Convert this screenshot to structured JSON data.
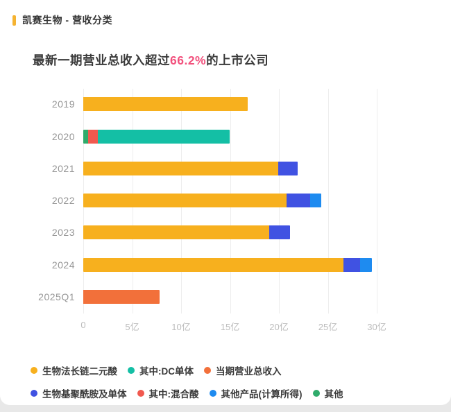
{
  "header": {
    "title": "凯赛生物 - 营收分类",
    "accent_color": "#f5b331"
  },
  "subtitle": {
    "prefix": "最新一期营业总收入超过",
    "highlight": "66.2%",
    "suffix": "的上市公司",
    "highlight_color": "#f2517d"
  },
  "chart_data": {
    "type": "bar",
    "orientation": "horizontal",
    "stacked": true,
    "unit": "亿",
    "grid": true,
    "categories": [
      "2019",
      "2020",
      "2021",
      "2022",
      "2023",
      "2024",
      "2025Q1"
    ],
    "x_ticks": [
      "0",
      "5亿",
      "10亿",
      "15亿",
      "20亿",
      "25亿",
      "30亿"
    ],
    "xlim": [
      0,
      30
    ],
    "bars": [
      {
        "year": "2019",
        "segments": [
          {
            "series": "生物法长链二元酸",
            "value": 16.8,
            "color": "#f7b01e"
          }
        ]
      },
      {
        "year": "2020",
        "segments": [
          {
            "series": "其他",
            "value": 0.5,
            "color": "#2fab6b"
          },
          {
            "series": "其中:混合酸",
            "value": 1.0,
            "color": "#f1594f"
          },
          {
            "series": "其中:DC单体",
            "value": 13.5,
            "color": "#14bfa5"
          }
        ]
      },
      {
        "year": "2021",
        "segments": [
          {
            "series": "生物法长链二元酸",
            "value": 19.9,
            "color": "#f7b01e"
          },
          {
            "series": "生物基聚酰胺及单体",
            "value": 2.0,
            "color": "#4052e2"
          }
        ]
      },
      {
        "year": "2022",
        "segments": [
          {
            "series": "生物法长链二元酸",
            "value": 20.8,
            "color": "#f7b01e"
          },
          {
            "series": "生物基聚酰胺及单体",
            "value": 2.4,
            "color": "#4052e2"
          },
          {
            "series": "其他产品(计算所得)",
            "value": 1.1,
            "color": "#1e8bf0"
          }
        ]
      },
      {
        "year": "2023",
        "segments": [
          {
            "series": "生物法长链二元酸",
            "value": 19.0,
            "color": "#f7b01e"
          },
          {
            "series": "生物基聚酰胺及单体",
            "value": 2.1,
            "color": "#4052e2"
          }
        ]
      },
      {
        "year": "2024",
        "segments": [
          {
            "series": "生物法长链二元酸",
            "value": 26.6,
            "color": "#f7b01e"
          },
          {
            "series": "生物基聚酰胺及单体",
            "value": 1.7,
            "color": "#4052e2"
          },
          {
            "series": "其他产品(计算所得)",
            "value": 1.2,
            "color": "#1e8bf0"
          }
        ]
      },
      {
        "year": "2025Q1",
        "segments": [
          {
            "series": "当期营业总收入",
            "value": 7.8,
            "color": "#f2703a"
          }
        ]
      }
    ]
  },
  "legend": {
    "rows": [
      [
        {
          "label": "生物法长链二元酸",
          "color": "#f7b01e"
        },
        {
          "label": "其中:DC单体",
          "color": "#14bfa5"
        },
        {
          "label": "当期营业总收入",
          "color": "#f2703a"
        }
      ],
      [
        {
          "label": "生物基聚酰胺及单体",
          "color": "#4052e2"
        },
        {
          "label": "其中:混合酸",
          "color": "#f1594f"
        },
        {
          "label": "其他产品(计算所得)",
          "color": "#1e8bf0"
        },
        {
          "label": "其他",
          "color": "#2fab6b"
        }
      ]
    ]
  }
}
